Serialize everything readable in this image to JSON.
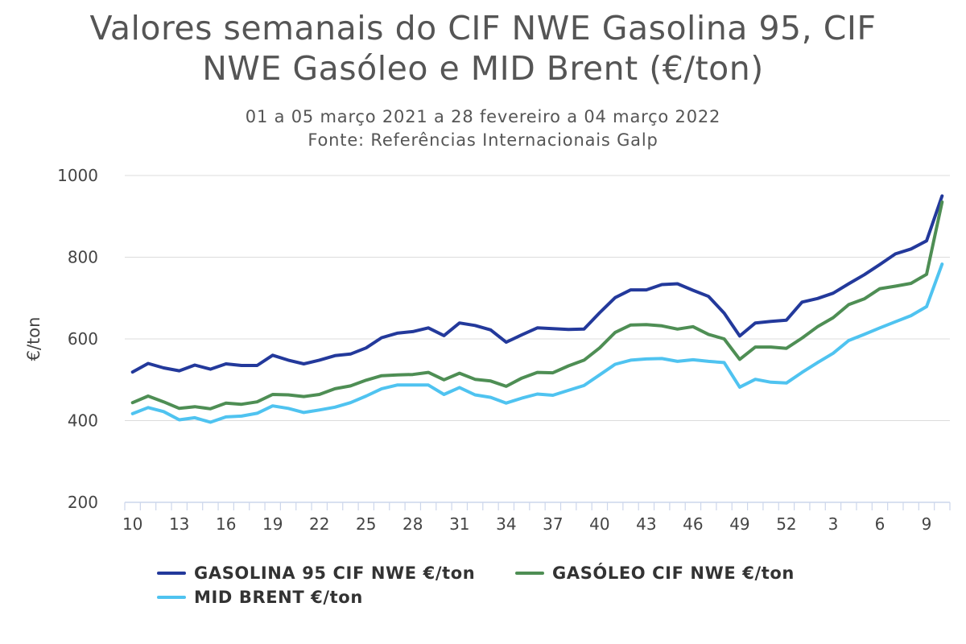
{
  "chart_data": {
    "type": "line",
    "title": [
      "Valores semanais do CIF NWE Gasolina 95, CIF",
      "NWE Gasóleo e MID Brent (€/ton)"
    ],
    "subtitle": [
      "01 a 05 março 2021 a 28 fevereiro a 04 março 2022",
      "Fonte: Referências Internacionais Galp"
    ],
    "xlabel": "",
    "ylabel": "€/ton",
    "ylim": [
      200,
      1000
    ],
    "yticks": [
      200,
      400,
      600,
      800,
      1000
    ],
    "x": [
      10,
      11,
      12,
      13,
      14,
      15,
      16,
      17,
      18,
      19,
      20,
      21,
      22,
      23,
      24,
      25,
      26,
      27,
      28,
      29,
      30,
      31,
      32,
      33,
      34,
      35,
      36,
      37,
      38,
      39,
      40,
      41,
      42,
      43,
      44,
      45,
      46,
      47,
      48,
      49,
      50,
      51,
      52,
      1,
      2,
      3,
      4,
      5,
      6,
      7,
      8,
      9,
      10
    ],
    "xtick_labels": [
      "10",
      "13",
      "16",
      "19",
      "22",
      "25",
      "28",
      "31",
      "34",
      "37",
      "40",
      "43",
      "46",
      "49",
      "52",
      "3",
      "6",
      "9"
    ],
    "series": [
      {
        "name": "GASOLINA 95 CIF NWE €/ton",
        "color": "#23399b",
        "values": [
          519,
          540,
          529,
          522,
          536,
          526,
          539,
          535,
          535,
          560,
          548,
          539,
          548,
          559,
          563,
          578,
          603,
          614,
          618,
          627,
          608,
          639,
          633,
          622,
          592,
          610,
          627,
          625,
          623,
          624,
          664,
          701,
          720,
          720,
          733,
          735,
          719,
          704,
          663,
          607,
          639,
          643,
          646,
          690,
          699,
          712,
          735,
          757,
          782,
          808,
          820,
          840,
          950
        ]
      },
      {
        "name": "GASÓLEO CIF NWE €/ton",
        "color": "#4e8e54",
        "values": [
          444,
          460,
          446,
          430,
          434,
          429,
          443,
          440,
          446,
          464,
          463,
          459,
          464,
          478,
          485,
          499,
          510,
          512,
          513,
          518,
          500,
          516,
          501,
          497,
          484,
          504,
          518,
          517,
          534,
          548,
          578,
          616,
          634,
          635,
          632,
          624,
          630,
          611,
          600,
          550,
          580,
          580,
          577,
          602,
          630,
          652,
          684,
          698,
          723,
          729,
          736,
          758,
          935
        ]
      },
      {
        "name": "MID BRENT €/ton",
        "color": "#4fc3f0",
        "values": [
          417,
          432,
          422,
          402,
          407,
          396,
          409,
          411,
          418,
          436,
          430,
          420,
          426,
          433,
          444,
          460,
          478,
          487,
          487,
          487,
          464,
          481,
          463,
          457,
          443,
          455,
          465,
          462,
          474,
          486,
          512,
          538,
          548,
          551,
          552,
          545,
          549,
          545,
          542,
          482,
          501,
          494,
          492,
          518,
          542,
          565,
          596,
          611,
          627,
          642,
          657,
          679,
          783
        ]
      }
    ]
  }
}
